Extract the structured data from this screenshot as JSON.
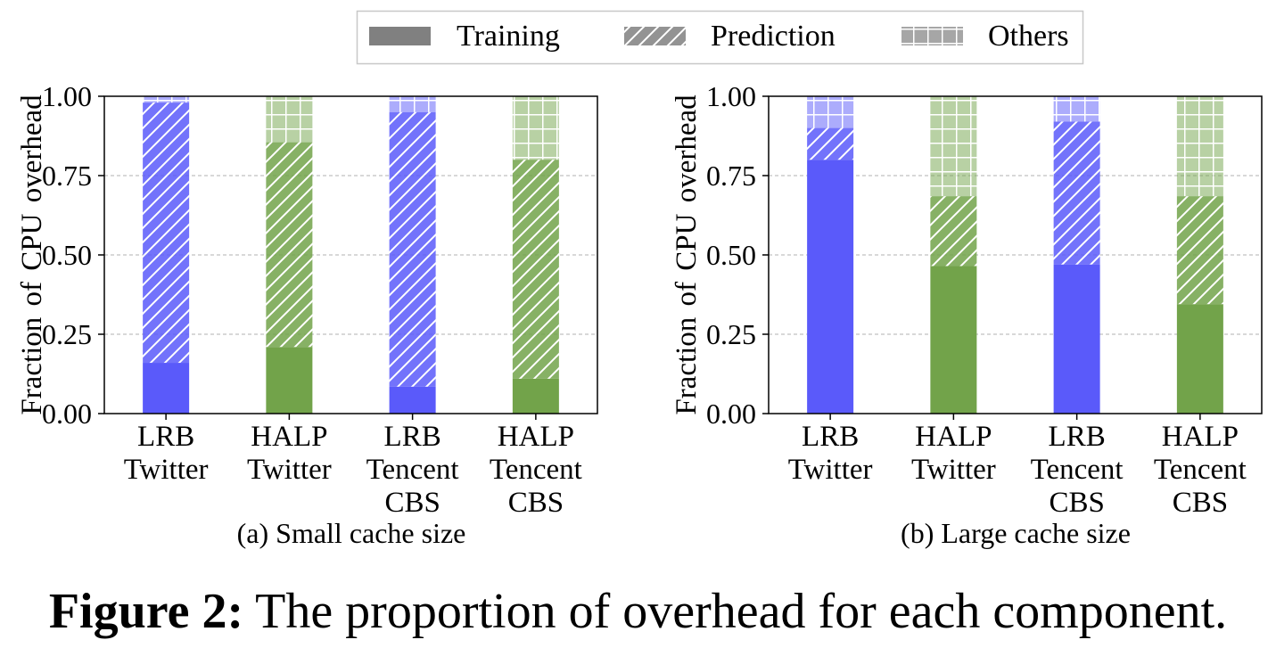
{
  "legend": {
    "entries": [
      {
        "label": "Training",
        "pattern": "solid"
      },
      {
        "label": "Prediction",
        "pattern": "hatch"
      },
      {
        "label": "Others",
        "pattern": "grid"
      }
    ]
  },
  "colors": {
    "lrb": "#5a5afa",
    "halp": "#72a34a",
    "legend_fill": "#808080",
    "grid": "#b0b0b0"
  },
  "caption": {
    "label": "Figure 2:",
    "text": "The proportion of overhead for each component."
  },
  "chart_data": [
    {
      "type": "bar",
      "stacked": true,
      "subtitle": "(a) Small cache size",
      "ylabel": "Fraction of CPU overhead",
      "ylim": [
        0,
        1
      ],
      "yticks": [
        "0.00",
        "0.25",
        "0.50",
        "0.75",
        "1.00"
      ],
      "grid": true,
      "categories": [
        {
          "lines": [
            "LRB",
            "Twitter"
          ],
          "color": "lrb"
        },
        {
          "lines": [
            "HALP",
            "Twitter"
          ],
          "color": "halp"
        },
        {
          "lines": [
            "LRB",
            "Tencent",
            "CBS"
          ],
          "color": "lrb"
        },
        {
          "lines": [
            "HALP",
            "Tencent",
            "CBS"
          ],
          "color": "halp"
        }
      ],
      "series": [
        {
          "name": "Training",
          "values": [
            0.16,
            0.21,
            0.085,
            0.11
          ]
        },
        {
          "name": "Prediction",
          "values": [
            0.82,
            0.645,
            0.865,
            0.69
          ]
        },
        {
          "name": "Others",
          "values": [
            0.02,
            0.145,
            0.05,
            0.2
          ]
        }
      ]
    },
    {
      "type": "bar",
      "stacked": true,
      "subtitle": "(b) Large cache size",
      "ylabel": "Fraction of CPU overhead",
      "ylim": [
        0,
        1
      ],
      "yticks": [
        "0.00",
        "0.25",
        "0.50",
        "0.75",
        "1.00"
      ],
      "grid": true,
      "categories": [
        {
          "lines": [
            "LRB",
            "Twitter"
          ],
          "color": "lrb"
        },
        {
          "lines": [
            "HALP",
            "Twitter"
          ],
          "color": "halp"
        },
        {
          "lines": [
            "LRB",
            "Tencent",
            "CBS"
          ],
          "color": "lrb"
        },
        {
          "lines": [
            "HALP",
            "Tencent",
            "CBS"
          ],
          "color": "halp"
        }
      ],
      "series": [
        {
          "name": "Training",
          "values": [
            0.8,
            0.465,
            0.47,
            0.345
          ]
        },
        {
          "name": "Prediction",
          "values": [
            0.1,
            0.22,
            0.45,
            0.34
          ]
        },
        {
          "name": "Others",
          "values": [
            0.1,
            0.315,
            0.08,
            0.315
          ]
        }
      ]
    }
  ]
}
